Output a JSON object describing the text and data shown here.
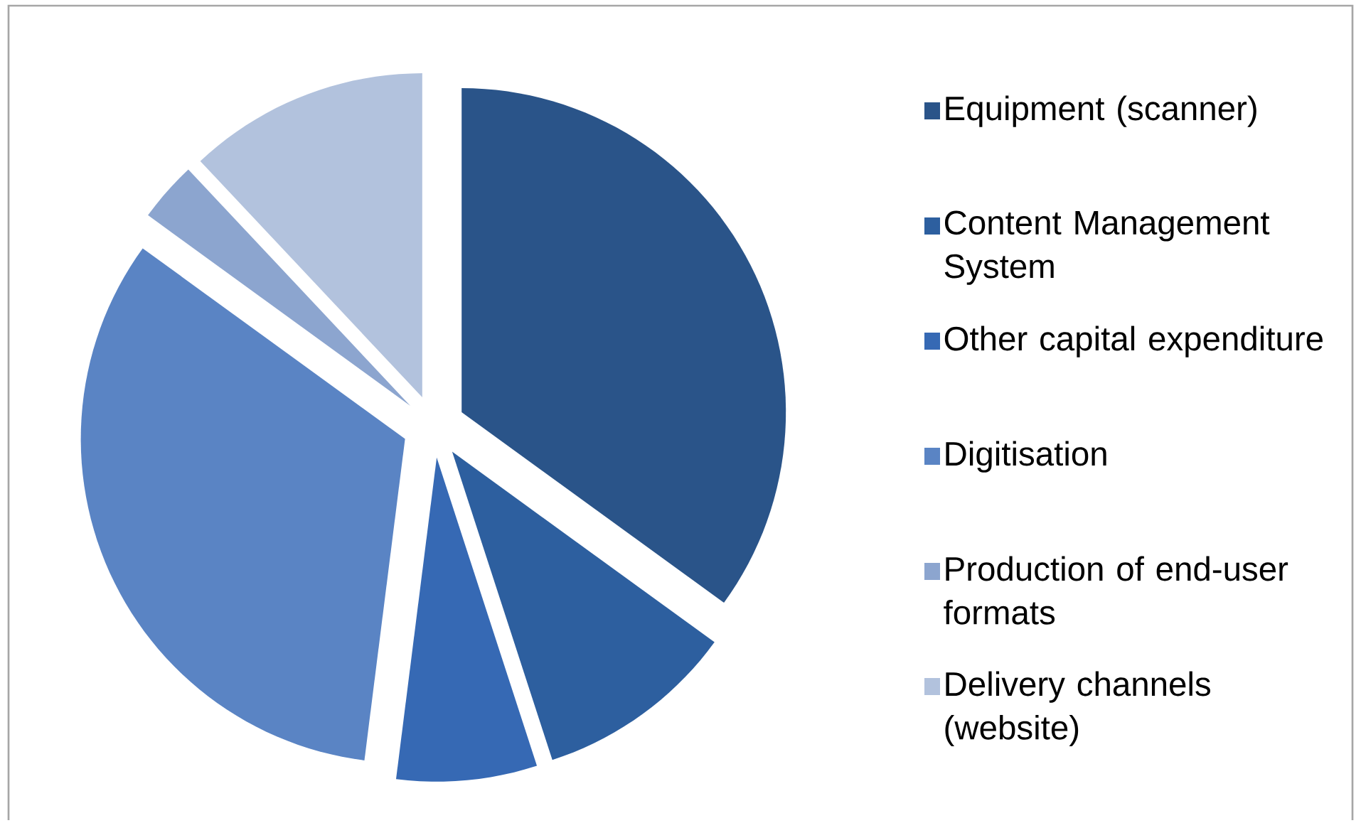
{
  "chart_data": {
    "type": "pie",
    "categories": [
      "Equipment (scanner)",
      "Content Management System",
      "Other capital expenditure",
      "Digitisation",
      "Production of end-user formats",
      "Delivery channels (website)"
    ],
    "values": [
      35,
      10,
      7,
      33,
      3,
      12
    ],
    "colors": [
      "#2a5489",
      "#2d5f9f",
      "#3669b4",
      "#5a84c4",
      "#8ca5cf",
      "#b2c2dd"
    ],
    "legend": "right"
  }
}
